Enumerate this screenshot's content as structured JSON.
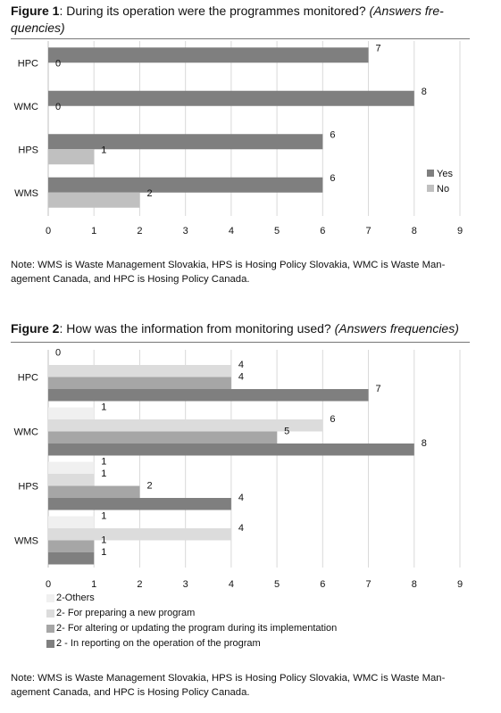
{
  "figure1": {
    "label": "Figure 1",
    "title_rest": ": During its operation were the programmes monitored? ",
    "title_italic": "(Answers fre-quencies)",
    "note": "Note: WMS is Waste Management Slovakia, HPS is Hosing Policy Slovakia, WMC is Waste Man-agement Canada, and HPC is Hosing Policy Canada."
  },
  "figure2": {
    "label": "Figure 2",
    "title_rest": ": How was the information from monitoring used? ",
    "title_italic": "(Answers frequencies)",
    "note": "Note: WMS is Waste Management Slovakia, HPS is Hosing Policy Slovakia, WMC is Waste Man-agement Canada, and HPC is Hosing Policy Canada."
  },
  "chart_data": [
    {
      "type": "bar",
      "orientation": "horizontal",
      "categories": [
        "HPC",
        "WMC",
        "HPS",
        "WMS"
      ],
      "series": [
        {
          "name": "Yes",
          "values": [
            7,
            8,
            6,
            6
          ],
          "color": "#7f7f7f"
        },
        {
          "name": "No",
          "values": [
            0,
            0,
            1,
            2
          ],
          "color": "#c0c0c0"
        }
      ],
      "xlim": [
        0,
        9
      ],
      "xticks": [
        0,
        1,
        2,
        3,
        4,
        5,
        6,
        7,
        8,
        9
      ],
      "grid": true,
      "legend": "right"
    },
    {
      "type": "bar",
      "orientation": "horizontal",
      "categories": [
        "HPC",
        "WMC",
        "HPS",
        "WMS"
      ],
      "series": [
        {
          "name": "2-Others",
          "values": [
            0,
            1,
            1,
            1
          ],
          "color": "#f0f0f0"
        },
        {
          "name": "2- For preparing a new program",
          "values": [
            4,
            6,
            1,
            4
          ],
          "color": "#dcdcdc"
        },
        {
          "name": "2- For altering or updating the program during its implementation",
          "values": [
            4,
            5,
            2,
            1
          ],
          "color": "#a6a6a6"
        },
        {
          "name": "2 - In reporting on the operation of the program",
          "values": [
            7,
            8,
            4,
            1
          ],
          "color": "#7f7f7f"
        }
      ],
      "xlim": [
        0,
        9
      ],
      "xticks": [
        0,
        1,
        2,
        3,
        4,
        5,
        6,
        7,
        8,
        9
      ],
      "grid": true,
      "legend": "bottom"
    }
  ]
}
